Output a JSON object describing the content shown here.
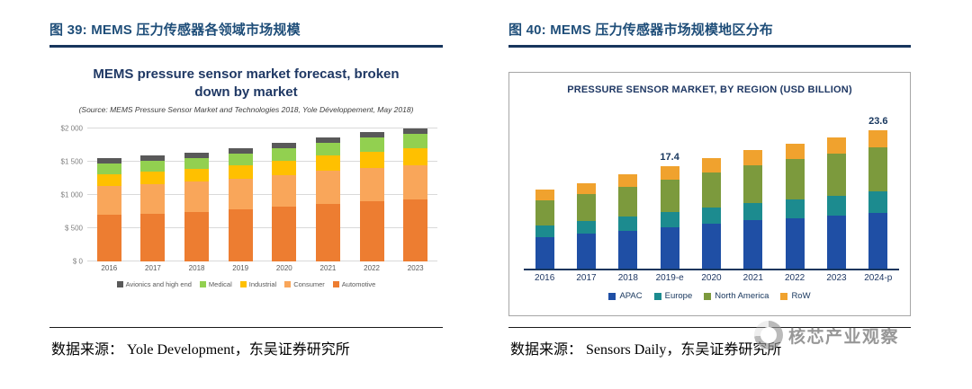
{
  "figures": [
    {
      "header": "图 39:  MEMS 压力传感器各领域市场规模",
      "caption": "数据来源： Yole Development，东吴证券研究所"
    },
    {
      "header": "图 40:  MEMS 压力传感器市场规模地区分布",
      "caption": "数据来源： Sensors Daily，东吴证券研究所"
    }
  ],
  "watermark": {
    "text": "核芯产业观察"
  },
  "chart_data": [
    {
      "type": "bar",
      "stacked": true,
      "title": "MEMS pressure sensor market forecast, broken down by market",
      "subtitle": "(Source: MEMS Pressure Sensor Market and Technologies 2018, Yole Développement, May 2018)",
      "unit": "USD million",
      "categories": [
        "2016",
        "2017",
        "2018",
        "2019",
        "2020",
        "2021",
        "2022",
        "2023"
      ],
      "ylim": [
        0,
        2000
      ],
      "yticks": [
        0,
        500,
        1000,
        1500,
        2000
      ],
      "ytick_labels": [
        "$ 0",
        "$ 500",
        "$1 000",
        "$1 500",
        "$2 000"
      ],
      "grid": true,
      "legend_position": "bottom",
      "legend_order": [
        "Avionics and high end",
        "Medical",
        "Industrial",
        "Consumer",
        "Automotive"
      ],
      "series": [
        {
          "name": "Automotive",
          "color": "#ED7D31",
          "values": [
            700,
            720,
            750,
            780,
            820,
            860,
            900,
            930
          ]
        },
        {
          "name": "Consumer",
          "color": "#F9A65A",
          "values": [
            430,
            440,
            450,
            460,
            480,
            500,
            510,
            520
          ]
        },
        {
          "name": "Industrial",
          "color": "#FFC000",
          "values": [
            180,
            185,
            190,
            200,
            215,
            230,
            245,
            255
          ]
        },
        {
          "name": "Medical",
          "color": "#92D050",
          "values": [
            160,
            165,
            170,
            180,
            190,
            195,
            205,
            210
          ]
        },
        {
          "name": "Avionics and high end",
          "color": "#595959",
          "values": [
            80,
            80,
            80,
            80,
            85,
            85,
            90,
            85
          ]
        }
      ]
    },
    {
      "type": "bar",
      "stacked": true,
      "title": "PRESSURE SENSOR MARKET, BY REGION (USD BILLION)",
      "unit": "USD billion",
      "categories": [
        "2016",
        "2017",
        "2018",
        "2019-e",
        "2020",
        "2021",
        "2022",
        "2023",
        "2024-p"
      ],
      "ylim": [
        0,
        26
      ],
      "grid": false,
      "legend_position": "bottom",
      "data_labels": [
        {
          "category": "2019-e",
          "value": "17.4"
        },
        {
          "category": "2024-p",
          "value": "23.6"
        }
      ],
      "series": [
        {
          "name": "APAC",
          "color": "#1F4FA5",
          "values": [
            5.4,
            5.9,
            6.5,
            7.0,
            7.6,
            8.2,
            8.6,
            9.0,
            9.5
          ]
        },
        {
          "name": "Europe",
          "color": "#1C8B8F",
          "values": [
            2.0,
            2.2,
            2.4,
            2.6,
            2.8,
            3.0,
            3.2,
            3.4,
            3.6
          ]
        },
        {
          "name": "North America",
          "color": "#7C9A3D",
          "values": [
            4.3,
            4.6,
            5.0,
            5.5,
            5.9,
            6.4,
            6.8,
            7.2,
            7.6
          ]
        },
        {
          "name": "RoW",
          "color": "#F0A22E",
          "values": [
            1.8,
            1.9,
            2.1,
            2.3,
            2.5,
            2.6,
            2.7,
            2.8,
            2.9
          ]
        }
      ]
    }
  ]
}
